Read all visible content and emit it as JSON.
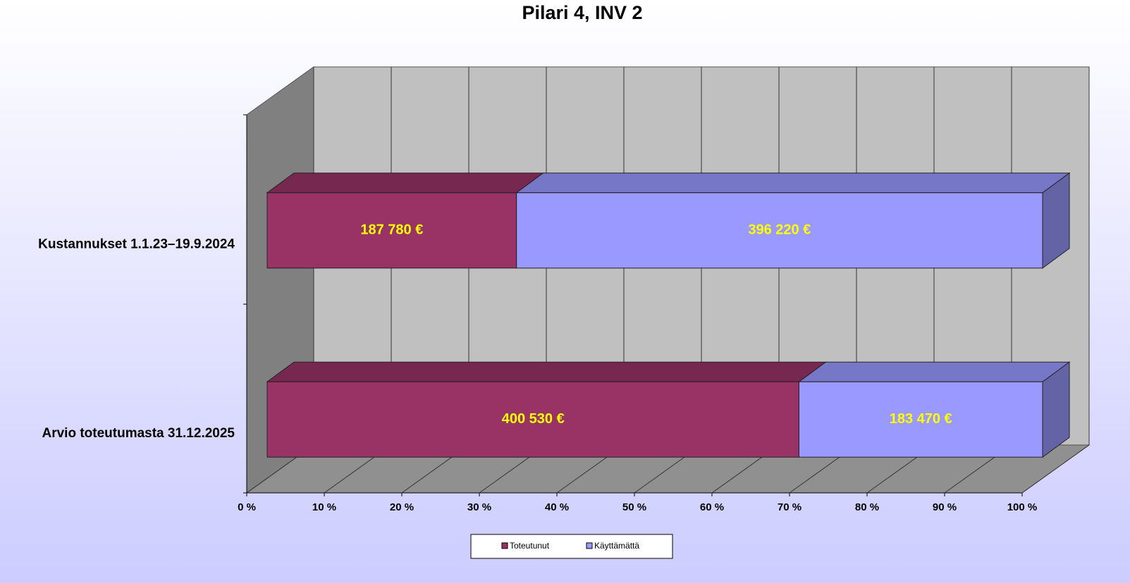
{
  "chart_data": {
    "type": "bar3d",
    "orientation": "horizontal",
    "stacking": "percent",
    "title": "Pilari 4, INV 2",
    "categories": [
      "Kustannukset 1.1.23–19.9.2024",
      "Arvio toteutumasta 31.12.2025"
    ],
    "series": [
      {
        "name": "Toteutunut",
        "color": "#993366",
        "values": [
          187780,
          400530
        ],
        "value_labels": [
          "187 780 €",
          "400 530 €"
        ]
      },
      {
        "name": "Käyttämättä",
        "color": "#9999ff",
        "values": [
          396220,
          183470
        ],
        "value_labels": [
          "396 220 €",
          "183 470 €"
        ]
      }
    ],
    "xlim": [
      0,
      100
    ],
    "xticks": [
      {
        "value": 0,
        "label": "0 %"
      },
      {
        "value": 10,
        "label": "10 %"
      },
      {
        "value": 20,
        "label": "20 %"
      },
      {
        "value": 30,
        "label": "30 %"
      },
      {
        "value": 40,
        "label": "40 %"
      },
      {
        "value": 50,
        "label": "50 %"
      },
      {
        "value": 60,
        "label": "60 %"
      },
      {
        "value": 70,
        "label": "70 %"
      },
      {
        "value": 80,
        "label": "80 %"
      },
      {
        "value": 90,
        "label": "90 %"
      },
      {
        "value": 100,
        "label": "100 %"
      }
    ],
    "grid": true,
    "legend": "bottom"
  }
}
